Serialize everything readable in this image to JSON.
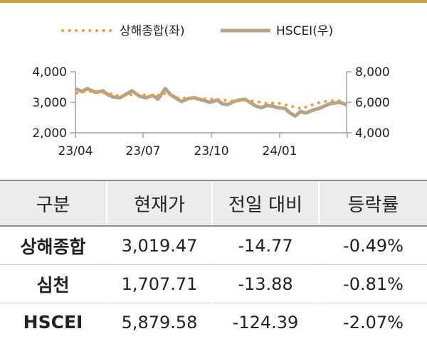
{
  "chart_data": {
    "type": "line",
    "legend_placement": "top-center",
    "x_tick_labels": [
      "23/04",
      "23/07",
      "23/10",
      "24/01"
    ],
    "y_left": {
      "ticks": [
        "2,000",
        "3,000",
        "4,000"
      ],
      "ylim": [
        2000,
        4000
      ]
    },
    "y_right": {
      "ticks": [
        "4,000",
        "6,000",
        "8,000"
      ],
      "ylim": [
        4000,
        8000
      ]
    },
    "xlim": [
      "2023-04-01",
      "2024-03-31"
    ],
    "series": [
      {
        "name": "상해종합(좌)",
        "axis": "left",
        "style": "dotted",
        "color": "#f39a35",
        "x": [
          "2023-04-03",
          "2023-04-17",
          "2023-05-02",
          "2023-05-16",
          "2023-06-01",
          "2023-06-15",
          "2023-07-03",
          "2023-07-17",
          "2023-07-31",
          "2023-08-15",
          "2023-08-31",
          "2023-09-15",
          "2023-09-28",
          "2023-10-16",
          "2023-10-31",
          "2023-11-15",
          "2023-11-30",
          "2023-12-15",
          "2023-12-29",
          "2024-01-15",
          "2024-01-31",
          "2024-02-08",
          "2024-02-23",
          "2024-03-08",
          "2024-03-22",
          "2024-03-29"
        ],
        "values": [
          3300,
          3370,
          3330,
          3290,
          3200,
          3250,
          3240,
          3200,
          3290,
          3150,
          3140,
          3120,
          3110,
          3080,
          3030,
          3060,
          3030,
          2960,
          2980,
          2880,
          2790,
          2870,
          2990,
          3050,
          3050,
          3020
        ]
      },
      {
        "name": "HSCEI(우)",
        "axis": "right",
        "style": "solid",
        "color": "#b2a58b",
        "x": [
          "2023-04-03",
          "2023-04-10",
          "2023-04-17",
          "2023-04-28",
          "2023-05-08",
          "2023-05-15",
          "2023-05-22",
          "2023-05-31",
          "2023-06-09",
          "2023-06-16",
          "2023-06-26",
          "2023-07-05",
          "2023-07-14",
          "2023-07-21",
          "2023-07-31",
          "2023-08-07",
          "2023-08-15",
          "2023-08-22",
          "2023-08-31",
          "2023-09-08",
          "2023-09-15",
          "2023-09-22",
          "2023-09-29",
          "2023-10-09",
          "2023-10-16",
          "2023-10-23",
          "2023-10-31",
          "2023-11-08",
          "2023-11-15",
          "2023-11-22",
          "2023-11-30",
          "2023-12-07",
          "2023-12-15",
          "2023-12-22",
          "2023-12-29",
          "2024-01-08",
          "2024-01-15",
          "2024-01-22",
          "2024-01-29",
          "2024-02-05",
          "2024-02-15",
          "2024-02-23",
          "2024-03-01",
          "2024-03-08",
          "2024-03-15",
          "2024-03-22",
          "2024-03-29"
        ],
        "values": [
          6850,
          6700,
          6900,
          6650,
          6750,
          6500,
          6350,
          6300,
          6550,
          6750,
          6400,
          6300,
          6450,
          6200,
          6900,
          6500,
          6250,
          6050,
          6250,
          6300,
          6200,
          6100,
          6000,
          6150,
          5900,
          5850,
          6050,
          6150,
          6200,
          6000,
          5750,
          5650,
          5800,
          5750,
          5650,
          5600,
          5300,
          5100,
          5400,
          5300,
          5500,
          5600,
          5750,
          5900,
          5950,
          6000,
          5880
        ]
      }
    ]
  },
  "table": {
    "headers": [
      "구분",
      "현재가",
      "전일 대비",
      "등락률"
    ],
    "rows": [
      [
        "상해종합",
        "3,019.47",
        "-14.77",
        "-0.49%"
      ],
      [
        "심천",
        "1,707.71",
        "-13.88",
        "-0.81%"
      ],
      [
        "HSCEI",
        "5,879.58",
        "-124.39",
        "-2.07%"
      ]
    ]
  },
  "colors": {
    "accent_rule": "#c9a23a",
    "header_bg": "#ececec",
    "shanghai": "#f39a35",
    "hscei": "#b2a58b",
    "axis": "#a0a0a0"
  }
}
